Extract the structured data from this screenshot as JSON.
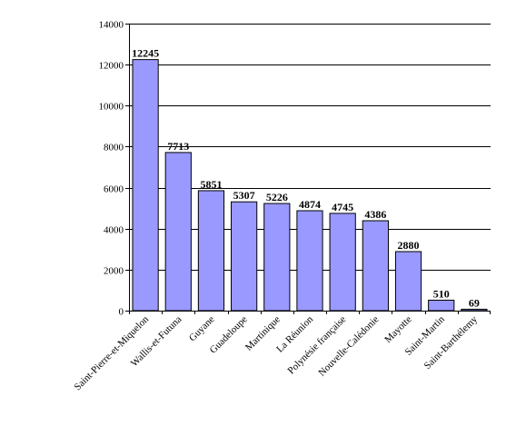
{
  "chart_data": {
    "type": "bar",
    "title": "",
    "xlabel": "",
    "ylabel": "",
    "ylim": [
      0,
      14000
    ],
    "yticks": [
      0,
      2000,
      4000,
      6000,
      8000,
      10000,
      12000,
      14000
    ],
    "grid": true,
    "legend": "none",
    "bar_color": "#9999ff",
    "bar_edge_color": "#000000",
    "categories": [
      "Saint-Pierre-et-Miquelon",
      "Wallis-et-Futuna",
      "Guyane",
      "Guadeloupe",
      "Martinique",
      "La Réunion",
      "Polynésie française",
      "Nouvelle-Calédonie",
      "Mayotte",
      "Saint-Martin",
      "Saint-Barthélemy"
    ],
    "values": [
      12245,
      7713,
      5851,
      5307,
      5226,
      4874,
      4745,
      4386,
      2880,
      510,
      69
    ]
  }
}
